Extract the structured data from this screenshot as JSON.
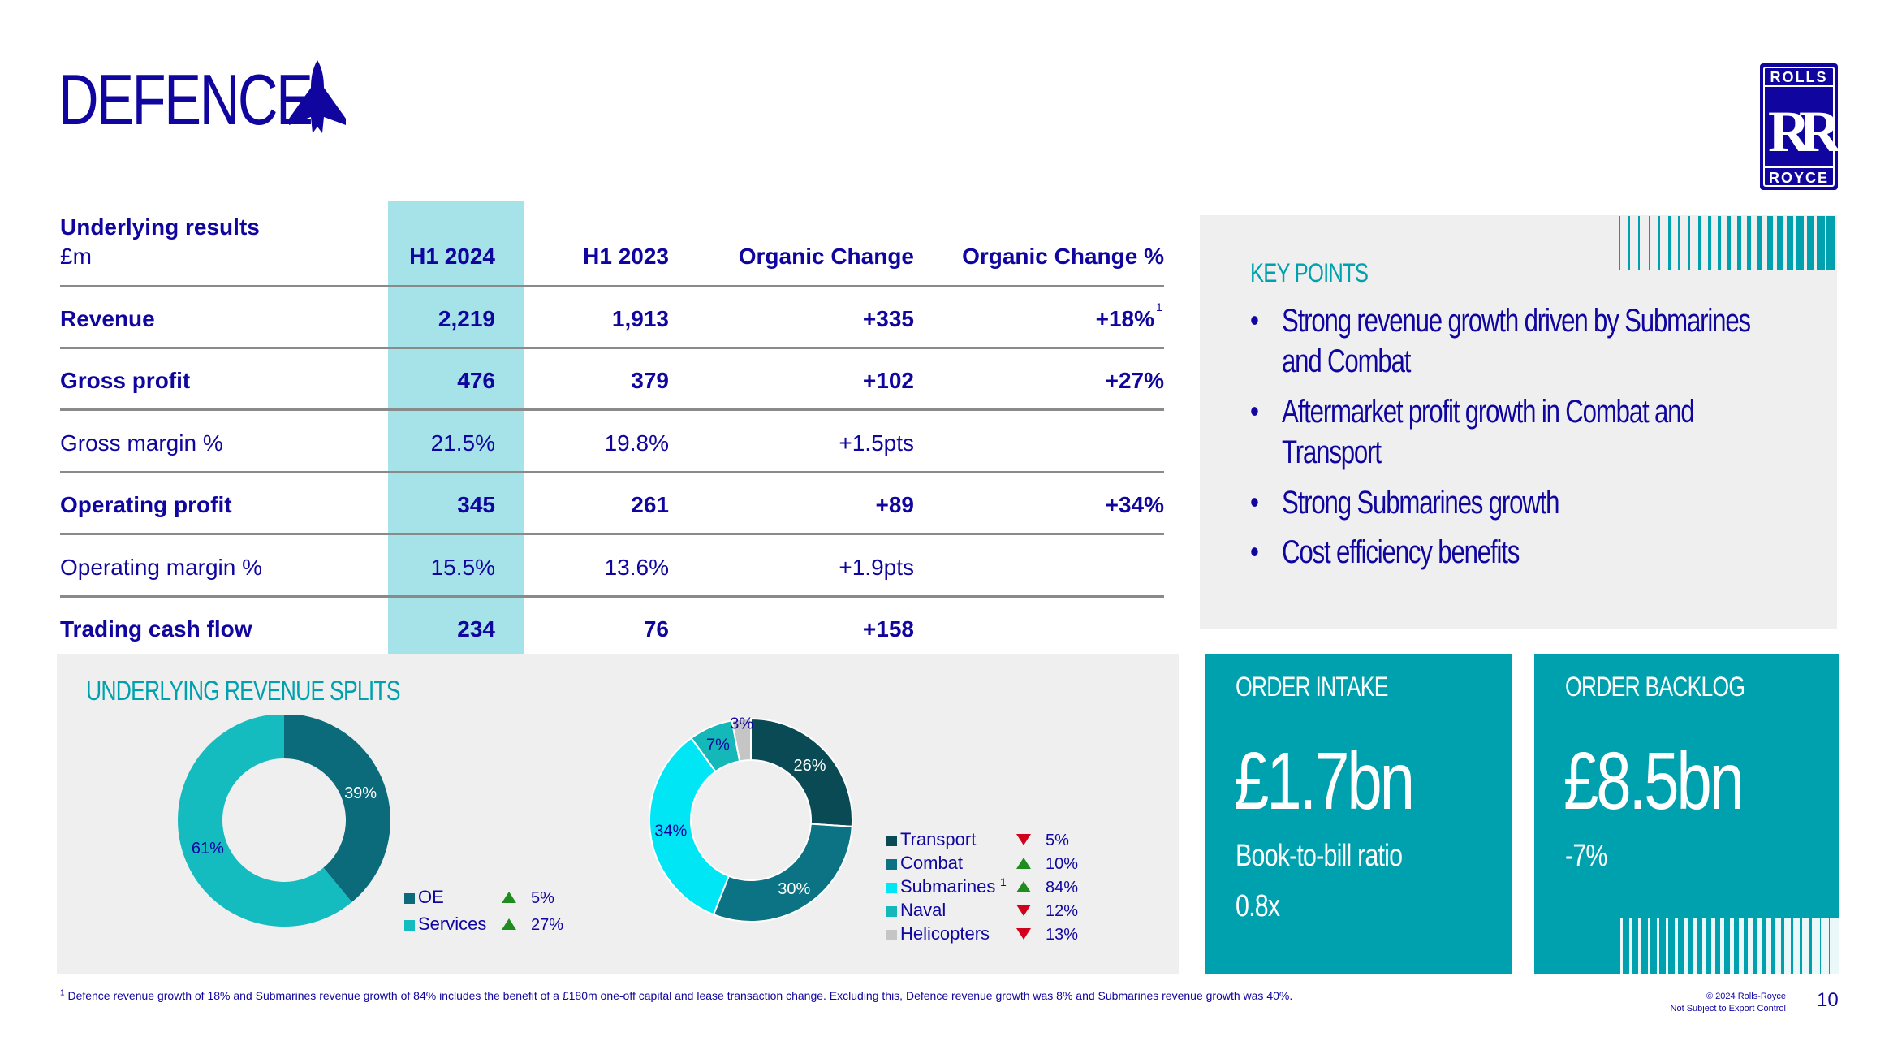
{
  "title": "DEFENCE",
  "brand": {
    "logo_top": "ROLLS",
    "logo_mono": "RR",
    "logo_bottom": "ROYCE"
  },
  "colors": {
    "navy": "#10069f",
    "teal": "#00a1ae",
    "dark_teal": "#0b6b7a",
    "highlight": "#a5e3e8",
    "panel_grey": "#efefef"
  },
  "table": {
    "header_label_line1": "Underlying results",
    "header_label_line2": "£m",
    "columns": [
      "H1 2024",
      "H1 2023",
      "Organic Change",
      "Organic Change %"
    ],
    "rows": [
      {
        "label": "Revenue",
        "h1_2024": "2,219",
        "h1_2023": "1,913",
        "organic_change": "+335",
        "organic_change_pct": "+18%",
        "pct_footnote": "1",
        "bold": true
      },
      {
        "label": "Gross profit",
        "h1_2024": "476",
        "h1_2023": "379",
        "organic_change": "+102",
        "organic_change_pct": "+27%",
        "bold": true
      },
      {
        "label": "Gross margin %",
        "h1_2024": "21.5%",
        "h1_2023": "19.8%",
        "organic_change": "+1.5pts",
        "organic_change_pct": "",
        "bold": false
      },
      {
        "label": "Operating profit",
        "h1_2024": "345",
        "h1_2023": "261",
        "organic_change": "+89",
        "organic_change_pct": "+34%",
        "bold": true
      },
      {
        "label": "Operating margin %",
        "h1_2024": "15.5%",
        "h1_2023": "13.6%",
        "organic_change": "+1.9pts",
        "organic_change_pct": "",
        "bold": false
      },
      {
        "label": "Trading cash flow",
        "h1_2024": "234",
        "h1_2023": "76",
        "organic_change": "+158",
        "organic_change_pct": "",
        "bold": true
      }
    ]
  },
  "key_points": {
    "title": "KEY POINTS",
    "bullet": "•",
    "items": [
      {
        "line1": "Strong revenue growth driven by Submarines",
        "line2": "and Combat"
      },
      {
        "line1": "Aftermarket profit growth in Combat and",
        "line2": "Transport"
      },
      {
        "line1": "Strong Submarines growth",
        "line2": ""
      },
      {
        "line1": "Cost efficiency benefits",
        "line2": ""
      }
    ]
  },
  "revenue_splits": {
    "title": "UNDERLYING REVENUE SPLITS"
  },
  "chart_data": [
    {
      "type": "pie",
      "categories": [
        "OE",
        "Services"
      ],
      "values": [
        39,
        61
      ],
      "value_labels": [
        "39%",
        "61%"
      ],
      "colors": [
        "#0b6b7a",
        "#14bcc0"
      ],
      "growth": [
        {
          "direction": "up",
          "label": "5%"
        },
        {
          "direction": "up",
          "label": "27%"
        }
      ]
    },
    {
      "type": "pie",
      "categories": [
        "Transport",
        "Combat",
        "Submarines",
        "Naval",
        "Helicopters"
      ],
      "category_footnotes": [
        "",
        "",
        "1",
        "",
        ""
      ],
      "values": [
        26,
        30,
        34,
        7,
        3
      ],
      "value_labels": [
        "26%",
        "30%",
        "34%",
        "7%",
        "3%"
      ],
      "colors": [
        "#0a4a55",
        "#0b7384",
        "#00e6f5",
        "#14b8b8",
        "#c5c5c5"
      ],
      "growth": [
        {
          "direction": "down",
          "label": "5%"
        },
        {
          "direction": "up",
          "label": "10%"
        },
        {
          "direction": "up",
          "label": "84%"
        },
        {
          "direction": "down",
          "label": "12%"
        },
        {
          "direction": "down",
          "label": "13%"
        }
      ]
    }
  ],
  "order_intake": {
    "label": "ORDER INTAKE",
    "value": "£1.7bn",
    "sub_label": "Book-to-bill ratio",
    "sub_value": "0.8x"
  },
  "order_backlog": {
    "label": "ORDER BACKLOG",
    "value": "£8.5bn",
    "sub_value": "-7%"
  },
  "footnote": {
    "marker": "1",
    "text": "Defence revenue growth of 18% and Submarines revenue growth of 84% includes the benefit of a £180m one-off capital and lease transaction change. Excluding this, Defence revenue growth was 8% and Submarines revenue growth was 40%."
  },
  "legal": {
    "line1": "© 2024 Rolls-Royce",
    "line2": "Not Subject to Export Control"
  },
  "page_number": "10"
}
